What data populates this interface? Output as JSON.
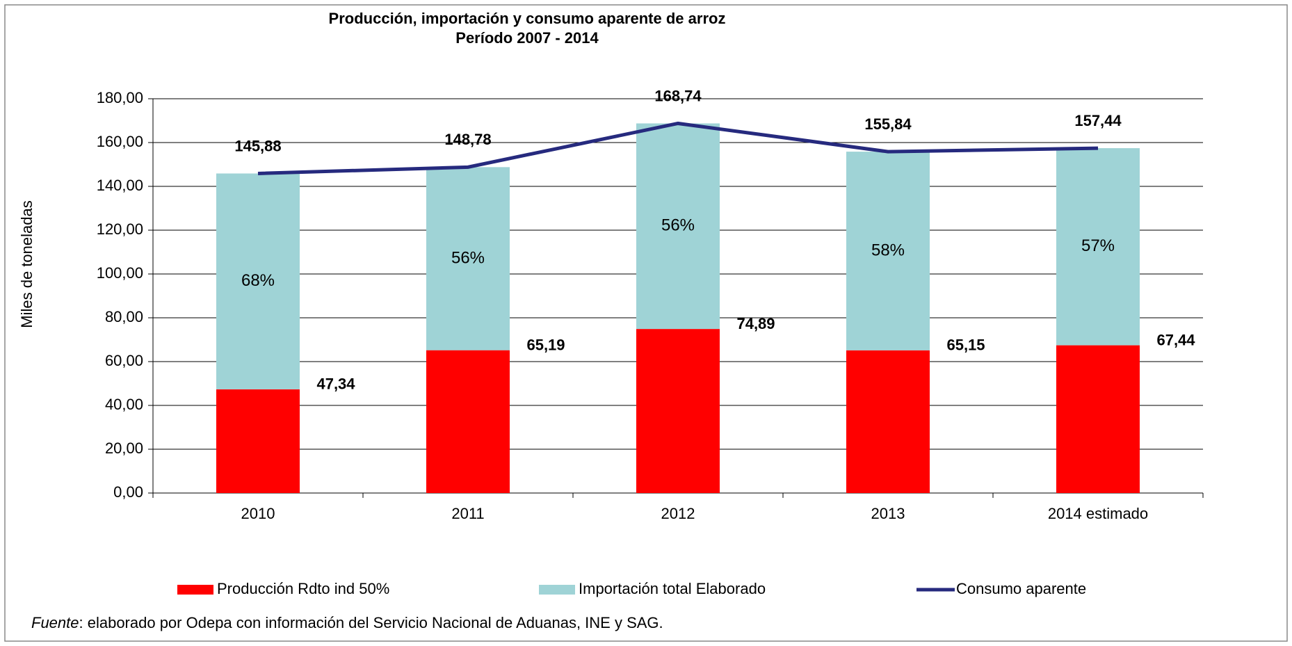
{
  "chart_data": {
    "type": "bar_line",
    "title": "Producción, importación y consumo aparente de arroz",
    "subtitle": "Período 2007 - 2014",
    "y_label": "Miles de toneladas",
    "categories": [
      "2010",
      "2011",
      "2012",
      "2013",
      "2014 estimado"
    ],
    "ylim": [
      0,
      180
    ],
    "yticks": [
      {
        "value": 0,
        "label": "0,00"
      },
      {
        "value": 20,
        "label": "20,00"
      },
      {
        "value": 40,
        "label": "40,00"
      },
      {
        "value": 60,
        "label": "60,00"
      },
      {
        "value": 80,
        "label": "80,00"
      },
      {
        "value": 100,
        "label": "100,00"
      },
      {
        "value": 120,
        "label": "120,00"
      },
      {
        "value": 140,
        "label": "140,00"
      },
      {
        "value": 160,
        "label": "160,00"
      },
      {
        "value": 180,
        "label": "180,00"
      }
    ],
    "grid": true,
    "legend": "bottom",
    "series": [
      {
        "name": "Producción Rdto ind 50%",
        "kind": "bar",
        "color": "#ff0000",
        "values": [
          47.34,
          65.19,
          74.89,
          65.15,
          67.44
        ],
        "value_labels": [
          "47,34",
          "65,19",
          "74,89",
          "65,15",
          "67,44"
        ]
      },
      {
        "name": "Importación total Elaborado",
        "kind": "bar",
        "color": "#9fd3d6",
        "values": [
          98.54,
          83.59,
          93.85,
          90.69,
          90.0
        ],
        "percent_labels": [
          "68%",
          "56%",
          "56%",
          "58%",
          "57%"
        ]
      },
      {
        "name": "Consumo aparente",
        "kind": "line",
        "color": "#262a7e",
        "values": [
          145.88,
          148.78,
          168.74,
          155.84,
          157.44
        ],
        "value_labels": [
          "145,88",
          "148,78",
          "168,74",
          "155,84",
          "157,44"
        ]
      }
    ],
    "source_label": "Fuente",
    "source": ": elaborado por Odepa con información del Servicio Nacional de Aduanas, INE y SAG."
  }
}
